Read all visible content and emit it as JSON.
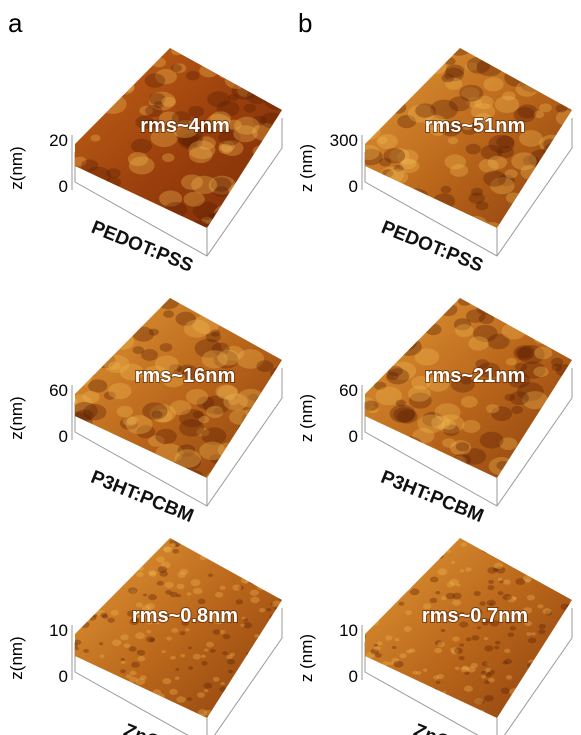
{
  "panels": [
    {
      "label": "a",
      "images": [
        {
          "z_label": "z(nm)",
          "z_ticks": [
            20,
            0
          ],
          "rms": "rms~4nm",
          "material": "PEDOT:PSS"
        },
        {
          "z_label": "z(nm)",
          "z_ticks": [
            60,
            0
          ],
          "rms": "rms~16nm",
          "material": "P3HT:PCBM"
        },
        {
          "z_label": "z(nm)",
          "z_ticks": [
            10,
            0
          ],
          "rms": "rms~0.8nm",
          "material": "ZnO"
        }
      ]
    },
    {
      "label": "b",
      "images": [
        {
          "z_label": "z (nm)",
          "z_ticks": [
            300,
            0
          ],
          "rms": "rms~51nm",
          "material": "PEDOT:PSS"
        },
        {
          "z_label": "z (nm)",
          "z_ticks": [
            60,
            0
          ],
          "rms": "rms~21nm",
          "material": "P3HT:PCBM"
        },
        {
          "z_label": "z (nm)",
          "z_ticks": [
            10,
            0
          ],
          "rms": "rms~0.7nm",
          "material": "ZnO"
        }
      ]
    }
  ]
}
